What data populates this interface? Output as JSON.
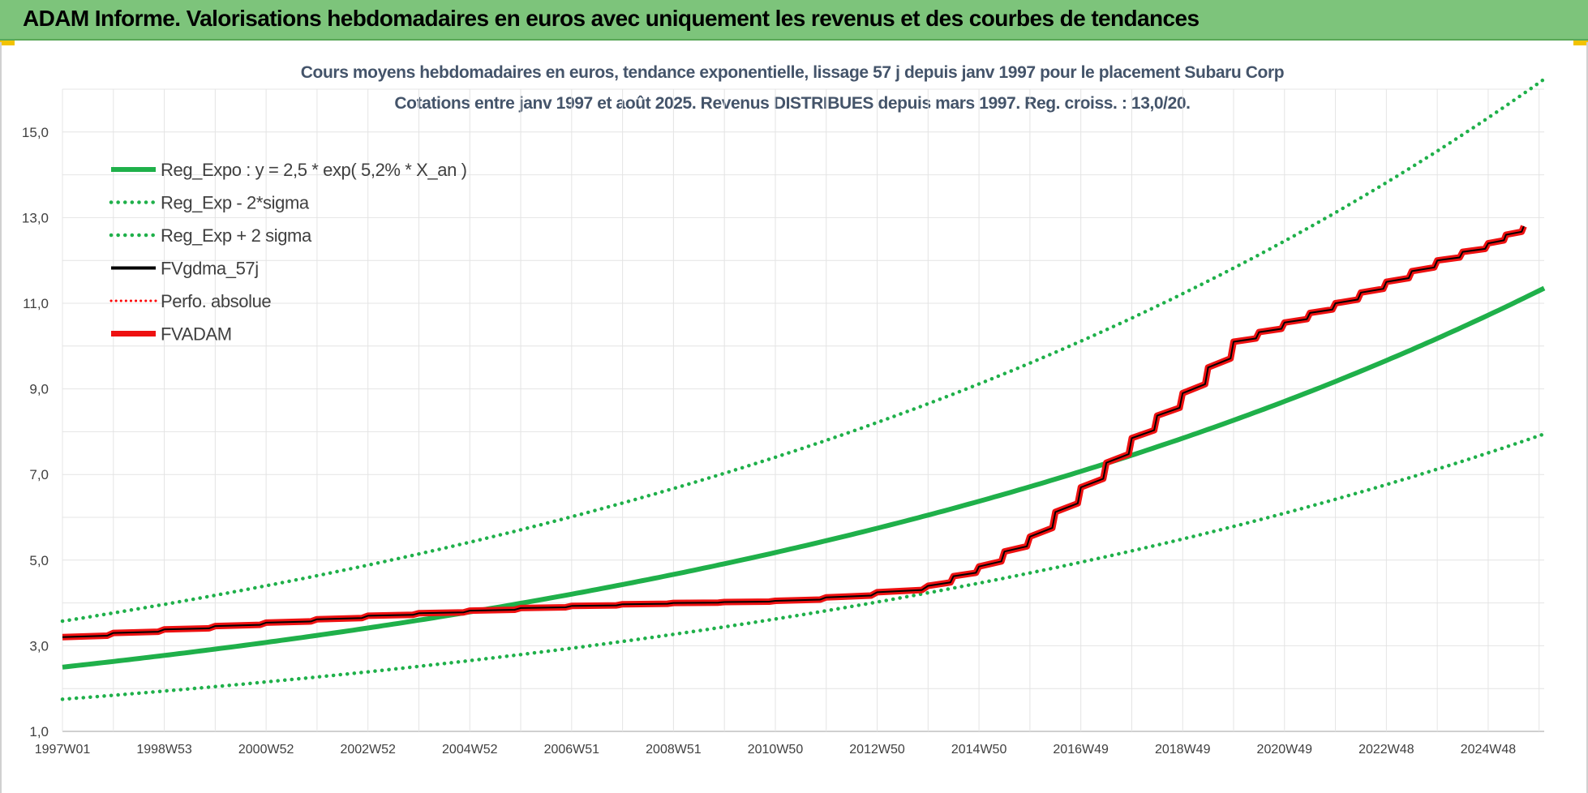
{
  "header": {
    "title": "ADAM Informe. Valorisations hebdomadaires en euros avec uniquement les revenus et des courbes de tendances"
  },
  "colors": {
    "header_bg": "#7dc47b",
    "trend": "#1fb04a",
    "band": "#1fb04a",
    "smoothed": "#000000",
    "perf": "#ff0000",
    "fvadam": "#ee1111"
  },
  "chart_data": {
    "type": "line",
    "title": "Cours moyens hebdomadaires en euros, tendance exponentielle, lissage 57 j depuis janv 1997 pour le placement Subaru Corp",
    "subtitle": "Cotations entre janv 1997 et août 2025.  Revenus DISTRIBUES depuis mars 1997. Reg. croiss. : 13,0/20.",
    "xlabel": "",
    "ylabel": "",
    "x_range": [
      1997.0,
      2026.1
    ],
    "ylim": [
      1.0,
      16.0
    ],
    "y_ticks": [
      "1,0",
      "3,0",
      "5,0",
      "7,0",
      "9,0",
      "11,0",
      "13,0",
      "15,0"
    ],
    "x_ticks": [
      {
        "label": "1997W01",
        "x": 1997.0
      },
      {
        "label": "1998W53",
        "x": 1999.0
      },
      {
        "label": "2000W52",
        "x": 2001.0
      },
      {
        "label": "2002W52",
        "x": 2003.0
      },
      {
        "label": "2004W52",
        "x": 2005.0
      },
      {
        "label": "2006W51",
        "x": 2007.0
      },
      {
        "label": "2008W51",
        "x": 2009.0
      },
      {
        "label": "2010W50",
        "x": 2011.0
      },
      {
        "label": "2012W50",
        "x": 2013.0
      },
      {
        "label": "2014W50",
        "x": 2015.0
      },
      {
        "label": "2016W49",
        "x": 2017.0
      },
      {
        "label": "2018W49",
        "x": 2019.0
      },
      {
        "label": "2020W49",
        "x": 2021.0
      },
      {
        "label": "2022W48",
        "x": 2023.0
      },
      {
        "label": "2024W48",
        "x": 2025.0
      }
    ],
    "grid": true,
    "legend_position": "top-left",
    "trend": {
      "a": 2.5,
      "rate": 0.052,
      "low_factor": 0.7,
      "high_factor": 1.43
    },
    "series": [
      {
        "name": "Reg_Expo : y = 2,5 * exp( 5,2% *  X_an )",
        "kind": "trend",
        "style": "solid",
        "color": "#1fb04a"
      },
      {
        "name": "Reg_Exp - 2*sigma",
        "kind": "trend-low",
        "style": "dotted",
        "color": "#1fb04a"
      },
      {
        "name": "Reg_Exp + 2 sigma",
        "kind": "trend-high",
        "style": "dotted",
        "color": "#1fb04a"
      },
      {
        "name": "FVgdma_57j",
        "kind": "smoothed",
        "style": "solid-thin",
        "color": "#000000"
      },
      {
        "name": "Perfo. absolue",
        "kind": "perf",
        "style": "dotted",
        "color": "#ff0000"
      },
      {
        "name": "FVADAM",
        "kind": "fvadam",
        "style": "solid-thick",
        "color": "#ee1111",
        "x": [
          1997.0,
          1998.0,
          1999.0,
          2000.0,
          2001.0,
          2002.0,
          2003.0,
          2004.0,
          2005.0,
          2006.0,
          2007.0,
          2008.0,
          2009.0,
          2010.0,
          2011.0,
          2012.0,
          2013.0,
          2014.0,
          2015.0,
          2016.0,
          2017.0,
          2018.0,
          2019.0,
          2020.0,
          2021.0,
          2022.0,
          2023.0,
          2024.0,
          2025.0,
          2025.7
        ],
        "y": [
          3.2,
          3.3,
          3.38,
          3.46,
          3.54,
          3.62,
          3.7,
          3.76,
          3.82,
          3.88,
          3.93,
          3.97,
          4.0,
          4.02,
          4.05,
          4.13,
          4.25,
          4.4,
          4.85,
          5.55,
          6.7,
          7.85,
          8.9,
          10.1,
          10.55,
          11.0,
          11.5,
          12.0,
          12.4,
          12.8
        ]
      }
    ]
  }
}
